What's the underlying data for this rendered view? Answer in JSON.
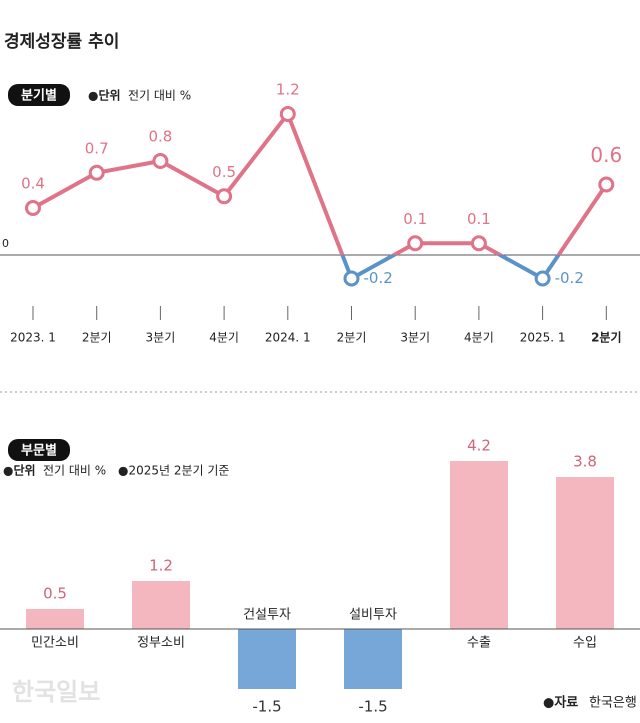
{
  "title": "경제성장률 추이",
  "source_label": "●자료",
  "source": "한국은행",
  "watermark": "한국일보",
  "chart_data": [
    {
      "type": "line",
      "section": "분기별",
      "unit_label": "●단위",
      "unit": "전기 대비 %",
      "categories": [
        "2023. 1",
        "2분기",
        "3분기",
        "4분기",
        "2024. 1",
        "2분기",
        "3분기",
        "4분기",
        "2025. 1",
        "2분기"
      ],
      "values": [
        0.4,
        0.7,
        0.8,
        0.5,
        1.2,
        -0.2,
        0.1,
        0.1,
        -0.2,
        0.6
      ],
      "ylim": [
        -0.4,
        1.4
      ],
      "yticks": [
        0
      ],
      "colors": {
        "positive": "#e07388",
        "negative": "#5b93c9"
      }
    },
    {
      "type": "bar",
      "section": "부문별",
      "unit_label": "●단위",
      "unit": "전기 대비 %",
      "basis": "●2025년 2분기 기준",
      "categories": [
        "민간소비",
        "정부소비",
        "건설투자",
        "설비투자",
        "수출",
        "수입"
      ],
      "values": [
        0.5,
        1.2,
        -1.5,
        -1.5,
        4.2,
        3.8
      ],
      "ylim": [
        -1.8,
        4.5
      ],
      "colors": {
        "positive": "#f4b6bf",
        "negative": "#77a6d8"
      }
    }
  ]
}
